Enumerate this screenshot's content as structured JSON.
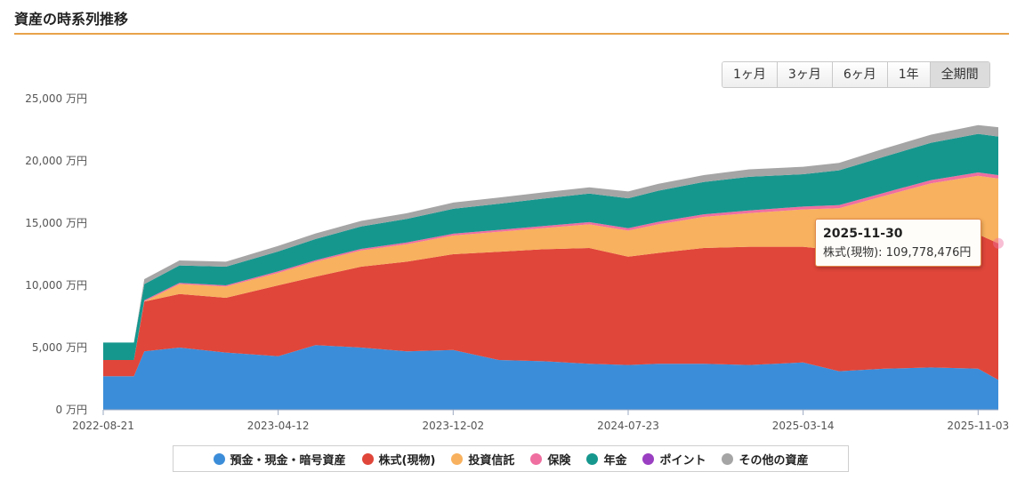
{
  "header": {
    "title": "資産の時系列推移"
  },
  "range_tabs": [
    {
      "label": "1ヶ月",
      "active": false
    },
    {
      "label": "3ヶ月",
      "active": false
    },
    {
      "label": "6ヶ月",
      "active": false
    },
    {
      "label": "1年",
      "active": false
    },
    {
      "label": "全期間",
      "active": true
    }
  ],
  "tooltip": {
    "date": "2025-11-30",
    "text": "株式(現物): 109,778,476円"
  },
  "colors": {
    "deposit": "#3c8dd9",
    "stock": "#e0463a",
    "fund": "#f8b15e",
    "insurance": "#ef6fa0",
    "pension": "#16978e",
    "point": "#9a3fc1",
    "other": "#a5a5a5",
    "accent": "#e8a24a"
  },
  "chart_data": {
    "type": "area",
    "stacked": true,
    "unit": "万円",
    "ylim": [
      0,
      25000
    ],
    "ytick_labels": [
      "0 万円",
      "5,000 万円",
      "10,000 万円",
      "15,000 万円",
      "20,000 万円",
      "25,000 万円"
    ],
    "ytick_values": [
      0,
      5000,
      10000,
      15000,
      20000,
      25000
    ],
    "xtick_labels": [
      "2022-08-21",
      "2023-04-12",
      "2023-12-02",
      "2024-07-23",
      "2025-03-14",
      "2025-11-03"
    ],
    "x": [
      "2022-08-21",
      "2022-10-01",
      "2022-10-15",
      "2022-12-01",
      "2023-02-01",
      "2023-04-12",
      "2023-06-01",
      "2023-08-01",
      "2023-10-01",
      "2023-12-02",
      "2024-02-01",
      "2024-04-01",
      "2024-06-01",
      "2024-07-23",
      "2024-09-01",
      "2024-11-01",
      "2025-01-01",
      "2025-03-14",
      "2025-05-01",
      "2025-07-01",
      "2025-09-01",
      "2025-11-03",
      "2025-11-30"
    ],
    "series": [
      {
        "name": "預金・現金・暗号資産",
        "key": "deposit",
        "values": [
          2700,
          2700,
          4700,
          5000,
          4600,
          4300,
          5200,
          5000,
          4700,
          4800,
          4000,
          3900,
          3700,
          3600,
          3700,
          3700,
          3600,
          3800,
          3100,
          3300,
          3400,
          3300,
          2400
        ]
      },
      {
        "name": "株式(現物)",
        "key": "stock",
        "values": [
          1300,
          1300,
          4000,
          4300,
          4400,
          5700,
          5500,
          6500,
          7200,
          7700,
          8700,
          9000,
          9300,
          8700,
          8900,
          9300,
          9500,
          9300,
          9700,
          10000,
          10500,
          10800,
          10978
        ]
      },
      {
        "name": "投資信託",
        "key": "fund",
        "values": [
          0,
          0,
          0,
          800,
          900,
          1000,
          1200,
          1300,
          1400,
          1500,
          1600,
          1700,
          1900,
          2100,
          2300,
          2500,
          2700,
          3000,
          3400,
          3900,
          4300,
          4700,
          5200
        ]
      },
      {
        "name": "保険",
        "key": "insurance",
        "values": [
          0,
          0,
          100,
          100,
          100,
          120,
          120,
          130,
          140,
          150,
          160,
          170,
          180,
          190,
          200,
          210,
          220,
          230,
          240,
          250,
          260,
          270,
          280
        ]
      },
      {
        "name": "年金",
        "key": "pension",
        "values": [
          1400,
          1400,
          1300,
          1400,
          1500,
          1600,
          1700,
          1800,
          1900,
          2000,
          2100,
          2200,
          2300,
          2400,
          2500,
          2600,
          2700,
          2600,
          2800,
          2900,
          3000,
          3100,
          3100
        ]
      },
      {
        "name": "ポイント",
        "key": "point",
        "values": [
          0,
          0,
          0,
          0,
          0,
          0,
          0,
          0,
          0,
          0,
          0,
          0,
          0,
          0,
          0,
          0,
          0,
          0,
          0,
          0,
          0,
          0,
          0
        ]
      },
      {
        "name": "その他の資産",
        "key": "other",
        "values": [
          0,
          0,
          400,
          400,
          400,
          450,
          450,
          450,
          450,
          500,
          500,
          500,
          500,
          550,
          550,
          550,
          600,
          600,
          600,
          650,
          650,
          700,
          750
        ]
      }
    ],
    "grid": false,
    "legend_position": "bottom"
  }
}
